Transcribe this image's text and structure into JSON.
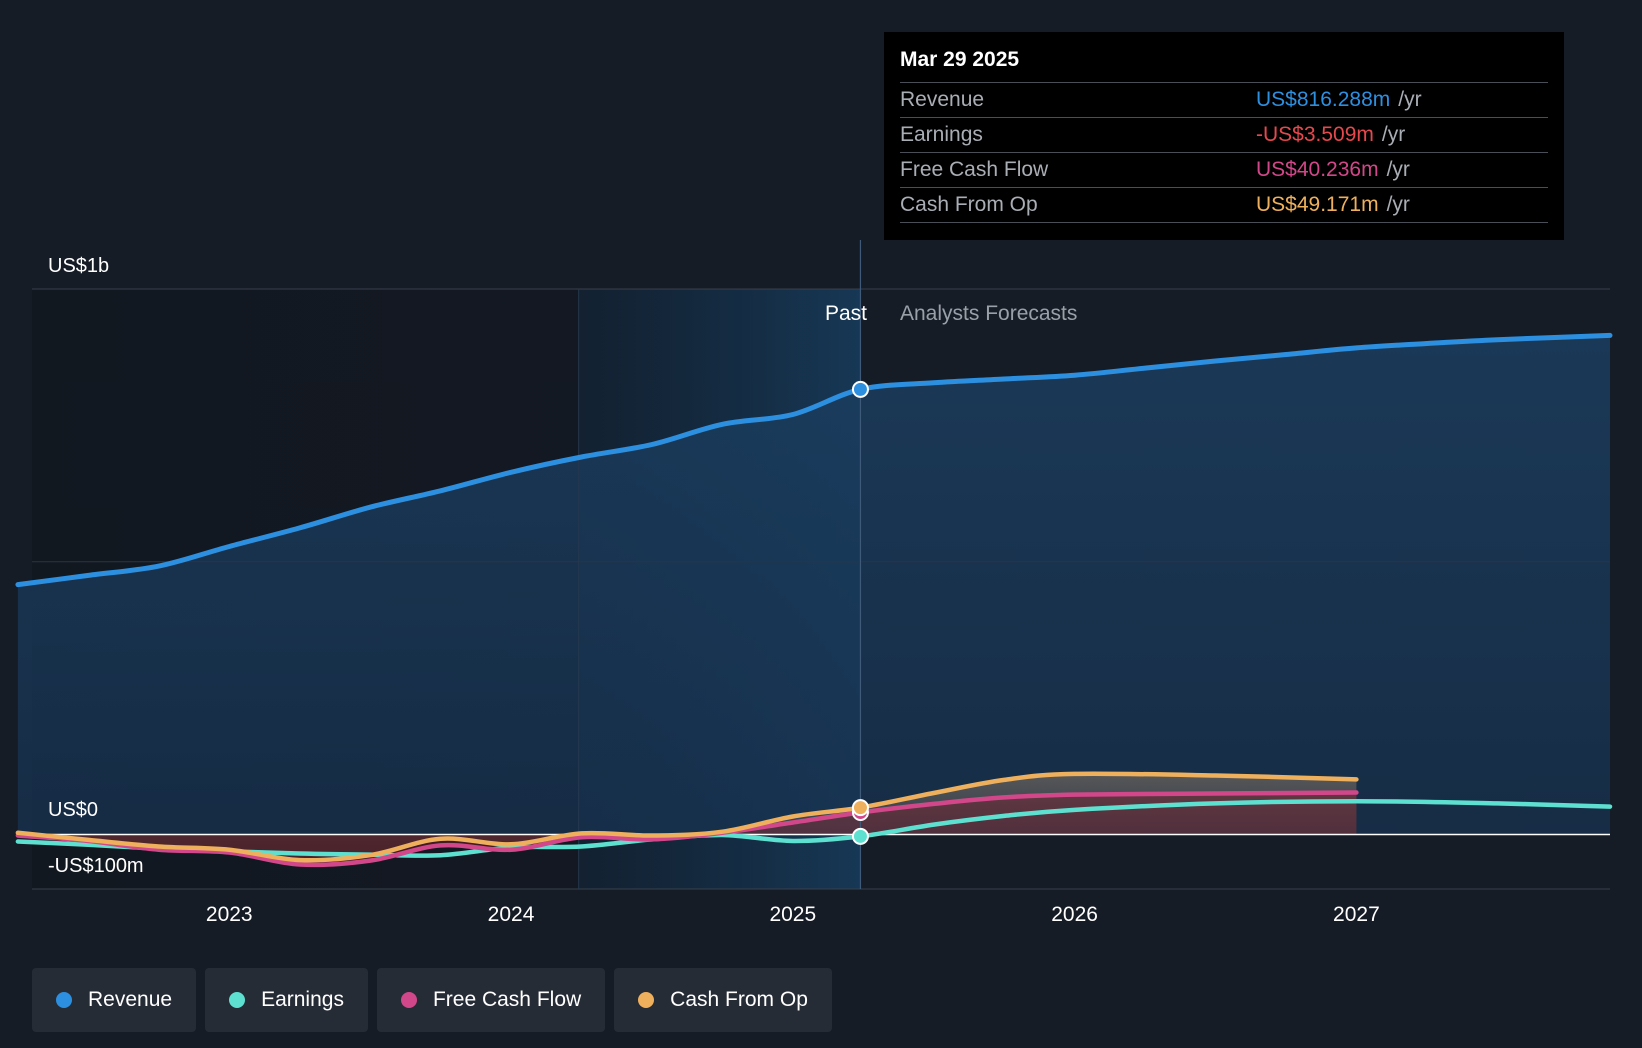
{
  "chart_data": {
    "type": "line",
    "y_axis": {
      "top_label": "US$1b",
      "zero_label": "US$0",
      "bottom_label": "-US$100m",
      "ylim": [
        -100,
        1000
      ],
      "unit": "US$m"
    },
    "x_ticks": [
      "2023",
      "2024",
      "2025",
      "2026",
      "2027"
    ],
    "xlim": [
      2022.3,
      2027.9
    ],
    "past_label": "Past",
    "forecast_label": "Analysts Forecasts",
    "past_forecast_boundary": 2025.24,
    "highlight_start": 2024.24,
    "series": [
      {
        "name": "Revenue",
        "color": "#2d8fe0",
        "x": [
          2022.25,
          2022.5,
          2022.75,
          2023.0,
          2023.25,
          2023.5,
          2023.75,
          2024.0,
          2024.25,
          2024.5,
          2024.75,
          2025.0,
          2025.24,
          2025.5,
          2025.75,
          2026.0,
          2026.25,
          2026.5,
          2026.75,
          2027.0,
          2027.25,
          2027.5,
          2027.9
        ],
        "values": [
          458,
          475,
          492,
          528,
          562,
          600,
          630,
          664,
          692,
          715,
          752,
          770,
          816,
          828,
          835,
          842,
          855,
          868,
          880,
          892,
          900,
          907,
          915
        ]
      },
      {
        "name": "Earnings",
        "color": "#5ee0d0",
        "x": [
          2022.25,
          2022.5,
          2022.75,
          2023.0,
          2023.25,
          2023.5,
          2023.75,
          2024.0,
          2024.25,
          2024.5,
          2024.75,
          2025.0,
          2025.24,
          2025.5,
          2025.75,
          2026.0,
          2026.5,
          2027.0,
          2027.5,
          2027.9
        ],
        "values": [
          -13,
          -19,
          -26,
          -31,
          -35,
          -37,
          -38,
          -24,
          -22,
          -9,
          -1,
          -12,
          -3.509,
          18,
          34,
          45,
          57,
          61,
          57,
          51
        ]
      },
      {
        "name": "Free Cash Flow",
        "color": "#d2478a",
        "x": [
          2022.25,
          2022.5,
          2022.75,
          2023.0,
          2023.25,
          2023.5,
          2023.75,
          2024.0,
          2024.25,
          2024.5,
          2024.75,
          2025.0,
          2025.24,
          2025.5,
          2025.75,
          2026.0,
          2026.5,
          2027.0
        ],
        "values": [
          -2,
          -12,
          -28,
          -33,
          -55,
          -48,
          -20,
          -28,
          -5,
          -9,
          3,
          22,
          40.236,
          56,
          68,
          73,
          75,
          77
        ]
      },
      {
        "name": "Cash From Op",
        "color": "#eeb05c",
        "x": [
          2022.25,
          2022.5,
          2022.75,
          2023.0,
          2023.25,
          2023.5,
          2023.75,
          2024.0,
          2024.25,
          2024.5,
          2024.75,
          2025.0,
          2025.24,
          2025.5,
          2025.75,
          2026.0,
          2026.5,
          2027.0
        ],
        "values": [
          3,
          -10,
          -22,
          -28,
          -47,
          -38,
          -8,
          -18,
          2,
          -2,
          5,
          33,
          49.171,
          76,
          100,
          111,
          108,
          101
        ]
      }
    ]
  },
  "tooltip": {
    "date": "Mar 29 2025",
    "rows": [
      {
        "name": "Revenue",
        "value": "US$816.288m",
        "unit": "/yr",
        "color": "#2d8fe0"
      },
      {
        "name": "Earnings",
        "value": "-US$3.509m",
        "unit": "/yr",
        "color": "#e5484d"
      },
      {
        "name": "Free Cash Flow",
        "value": "US$40.236m",
        "unit": "/yr",
        "color": "#d2478a"
      },
      {
        "name": "Cash From Op",
        "value": "US$49.171m",
        "unit": "/yr",
        "color": "#eeb05c"
      }
    ]
  },
  "legend": [
    {
      "label": "Revenue",
      "color": "#2d8fe0"
    },
    {
      "label": "Earnings",
      "color": "#5ee0d0"
    },
    {
      "label": "Free Cash Flow",
      "color": "#d2478a"
    },
    {
      "label": "Cash From Op",
      "color": "#eeb05c"
    }
  ]
}
